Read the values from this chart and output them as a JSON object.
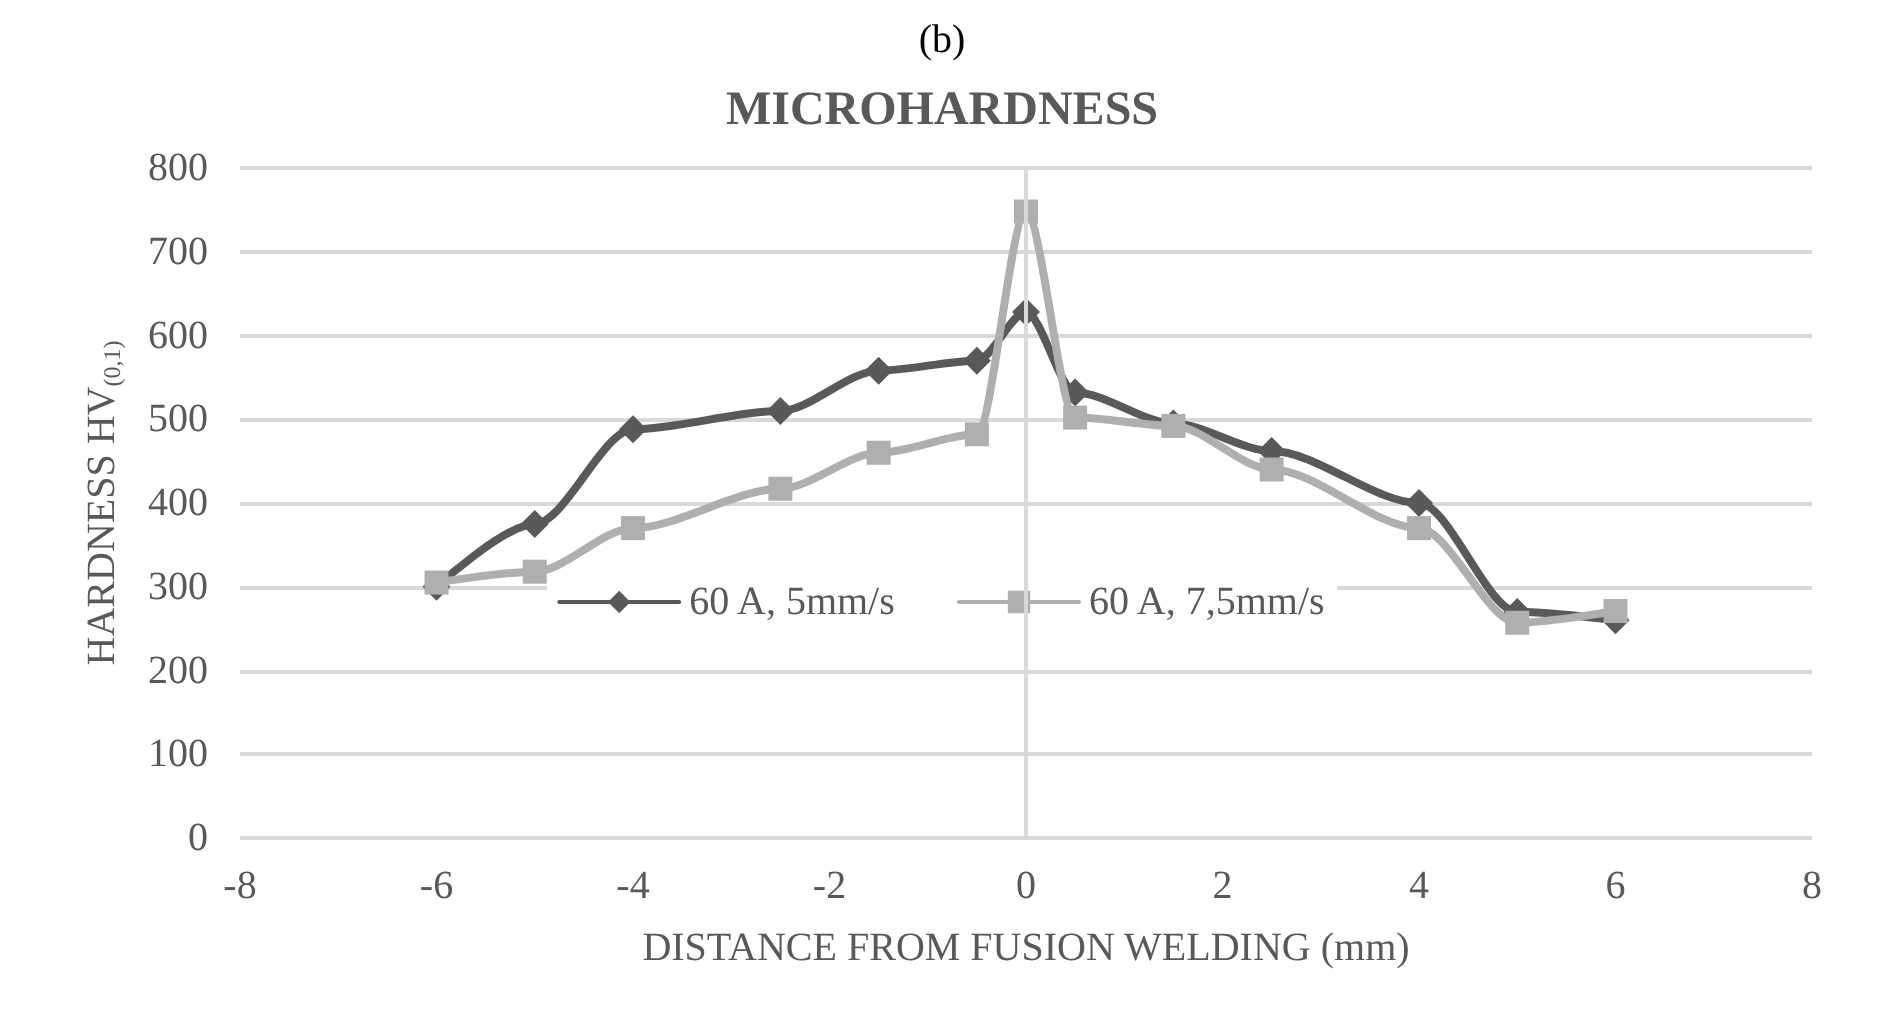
{
  "chart_data": {
    "type": "line",
    "title": "MICROHARDNESS",
    "xlabel": "DISTANCE FROM FUSION WELDING (mm)",
    "ylabel": "HARDNESS HV$_{(0,1)}$",
    "annotations": [
      "(b)"
    ],
    "x": [
      -6,
      -5,
      -4,
      -2.5,
      -1.5,
      -0.5,
      0,
      0.5,
      1.5,
      2.5,
      4,
      5,
      6
    ],
    "series": [
      {
        "name": "60 A, 5mm/s",
        "color": "#595959",
        "marker": "diamond",
        "values": [
          300,
          375,
          488,
          510,
          558,
          570,
          628,
          532,
          495,
          462,
          400,
          270,
          260
        ]
      },
      {
        "name": "60 A, 7,5mm/s",
        "color": "#afafaf",
        "marker": "square",
        "values": [
          305,
          318,
          370,
          417,
          460,
          482,
          748,
          502,
          492,
          440,
          370,
          257,
          271
        ]
      }
    ],
    "xlim": [
      -8,
      8
    ],
    "xticks": [
      -8,
      -6,
      -4,
      -2,
      0,
      2,
      4,
      6,
      8
    ],
    "ylim": [
      0,
      800
    ],
    "yticks": [
      0,
      100,
      200,
      300,
      400,
      500,
      600,
      700,
      800
    ],
    "grid": "y",
    "legend": "center",
    "ref_lines": [
      {
        "axis": "x",
        "value": 0,
        "color": "#d9d9d9"
      }
    ]
  }
}
